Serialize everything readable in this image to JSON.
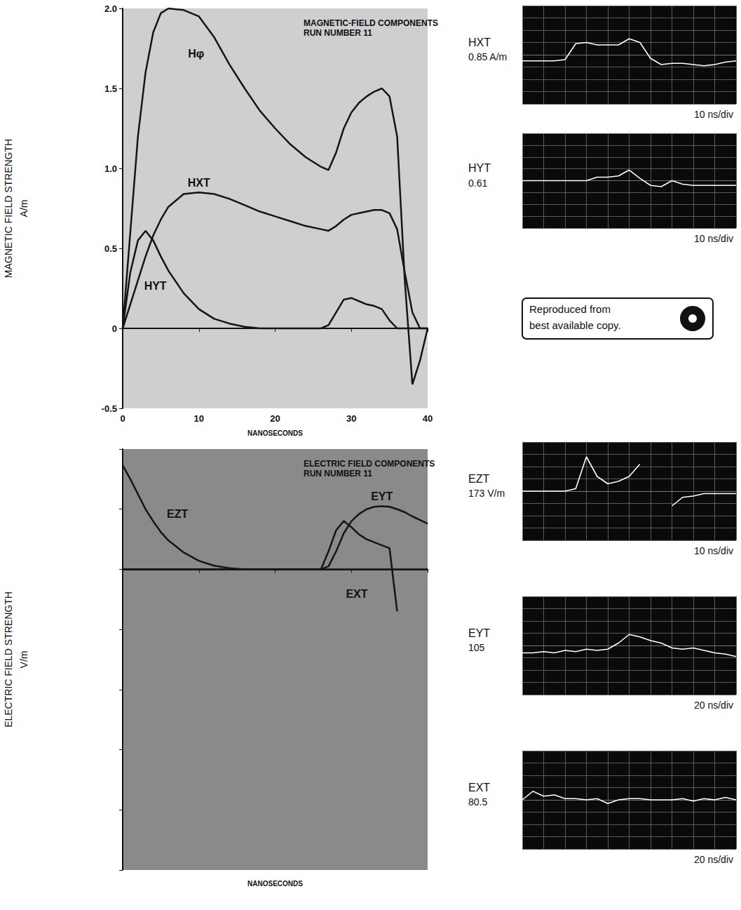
{
  "stamp": "Reproduced from best available copy.",
  "chart_data": [
    {
      "type": "line",
      "title": "MAGNETIC-FIELD COMPONENTS",
      "subtitle": "RUN NUMBER 11",
      "xlabel": "NANOSECONDS",
      "ylabel": "MAGNETIC FIELD STRENGTH\nA/m",
      "x": [
        0,
        1,
        2,
        3,
        4,
        5,
        6,
        8,
        10,
        12,
        14,
        16,
        18,
        20,
        22,
        24,
        26,
        27,
        28,
        29,
        30,
        31,
        32,
        33,
        34,
        35,
        36,
        37,
        38,
        39,
        40
      ],
      "xlim": [
        0,
        40
      ],
      "xticks": [
        0,
        10,
        20,
        30,
        40
      ],
      "ylim": [
        -0.5,
        2.0
      ],
      "yticks": [
        -0.5,
        0,
        0.5,
        {
          "value": 1.0,
          "label": "1.0"
        },
        1.5,
        {
          "value": 2.0,
          "label": "2.0"
        }
      ],
      "grid": false,
      "series": [
        {
          "name": "Hφ",
          "color": "#151515",
          "values": [
            0,
            0.6,
            1.2,
            1.6,
            1.85,
            1.97,
            2.0,
            1.99,
            1.95,
            1.82,
            1.65,
            1.5,
            1.36,
            1.25,
            1.15,
            1.07,
            1.01,
            0.99,
            1.1,
            1.25,
            1.35,
            1.41,
            1.45,
            1.48,
            1.5,
            1.45,
            1.2,
            0.3,
            -0.35,
            -0.2,
            0
          ]
        },
        {
          "name": "HXT",
          "color": "#151515",
          "values": [
            0,
            0.15,
            0.3,
            0.45,
            0.58,
            0.68,
            0.76,
            0.84,
            0.85,
            0.84,
            0.81,
            0.77,
            0.73,
            0.7,
            0.67,
            0.64,
            0.62,
            0.61,
            0.64,
            0.68,
            0.71,
            0.72,
            0.73,
            0.74,
            0.74,
            0.72,
            0.62,
            0.35,
            0.1,
            0,
            0
          ]
        },
        {
          "name": "HYT",
          "color": "#151515",
          "values": [
            0,
            0.35,
            0.55,
            0.61,
            0.55,
            0.45,
            0.36,
            0.22,
            0.12,
            0.06,
            0.03,
            0.01,
            0,
            0,
            0,
            0,
            0,
            0.02,
            0.1,
            0.18,
            0.19,
            0.17,
            0.15,
            0.14,
            0.12,
            0.05,
            0,
            0,
            0,
            0,
            0
          ]
        }
      ]
    },
    {
      "type": "line",
      "title": "ELECTRIC FIELD COMPONENTS",
      "subtitle": "RUN NUMBER 11",
      "xlabel": "NANOSECONDS",
      "ylabel": "ELECTRIC FIELD STRENGTH\nV/m",
      "x": [
        0,
        1,
        2,
        3,
        4,
        5,
        6,
        8,
        10,
        12,
        14,
        16,
        18,
        20,
        22,
        24,
        26,
        27,
        28,
        29,
        30,
        31,
        32,
        33,
        34,
        35,
        36,
        37,
        38,
        39,
        40
      ],
      "xlim": [
        0,
        40
      ],
      "xticks": [
        0,
        10,
        20,
        30,
        40
      ],
      "ylim": [
        -500,
        200
      ],
      "yticks": [
        -500,
        -400,
        -300,
        -200,
        -100,
        0,
        100,
        200
      ],
      "grid": false,
      "tick_labels": false,
      "series": [
        {
          "name": "EZT",
          "color": "#151515",
          "values": [
            173,
            150,
            125,
            100,
            80,
            62,
            48,
            28,
            14,
            6,
            2,
            0,
            0,
            0,
            0,
            0,
            0,
            0,
            0,
            0,
            0,
            0,
            0,
            0,
            0,
            0,
            0,
            0,
            0,
            0,
            0
          ]
        },
        {
          "name": "EYT",
          "color": "#151515",
          "values": [
            0,
            0,
            0,
            0,
            0,
            0,
            0,
            0,
            0,
            0,
            0,
            0,
            0,
            0,
            0,
            0,
            0,
            5,
            30,
            60,
            80,
            92,
            100,
            104,
            105,
            104,
            100,
            95,
            88,
            82,
            76
          ]
        },
        {
          "name": "EXT",
          "color": "#151515",
          "values": [
            0,
            0,
            0,
            0,
            0,
            0,
            0,
            0,
            0,
            0,
            0,
            0,
            0,
            0,
            0,
            0,
            0,
            30,
            65,
            80.5,
            70,
            58,
            50,
            45,
            40,
            35,
            -70,
            null,
            null,
            null,
            null
          ]
        }
      ]
    },
    {
      "type": "line",
      "title": "HXT",
      "subtitle": "0.85 A/m",
      "xlabel": "10 ns/div",
      "x": [
        0,
        0.5,
        1,
        1.5,
        2,
        2.5,
        3,
        3.5,
        4,
        4.5,
        5,
        5.5,
        6,
        6.5,
        7,
        7.5,
        8,
        8.5,
        9,
        9.5,
        10
      ],
      "xlim": [
        0,
        10
      ],
      "xticks": [
        0,
        1,
        2,
        3,
        4,
        5,
        6,
        7,
        8,
        9,
        10
      ],
      "ylim": [
        -4,
        4
      ],
      "yticks": [
        -4,
        -3,
        -2,
        -1,
        0,
        1,
        2,
        3,
        4
      ],
      "grid": true,
      "tick_labels": false,
      "series": [
        {
          "color": "#ffffff",
          "values": [
            -0.5,
            -0.5,
            -0.5,
            -0.5,
            -0.4,
            0.9,
            1.0,
            0.8,
            0.8,
            0.8,
            1.3,
            1.0,
            -0.3,
            -0.8,
            -0.7,
            -0.7,
            -0.8,
            -0.9,
            -0.8,
            -0.6,
            -0.5
          ]
        }
      ]
    },
    {
      "type": "line",
      "title": "HYT",
      "subtitle": "0.61",
      "xlabel": "10 ns/div",
      "x": [
        0,
        0.5,
        1,
        1.5,
        2,
        2.5,
        3,
        3.5,
        4,
        4.5,
        5,
        5.5,
        6,
        6.5,
        7,
        7.5,
        8,
        8.5,
        9,
        9.5,
        10
      ],
      "xlim": [
        0,
        10
      ],
      "xticks": [
        0,
        1,
        2,
        3,
        4,
        5,
        6,
        7,
        8,
        9,
        10
      ],
      "ylim": [
        -4,
        4
      ],
      "yticks": [
        -4,
        -3,
        -2,
        -1,
        0,
        1,
        2,
        3,
        4
      ],
      "grid": true,
      "tick_labels": false,
      "series": [
        {
          "color": "#ffffff",
          "values": [
            0,
            0,
            0,
            0,
            0,
            0,
            0,
            0.3,
            0.3,
            0.4,
            0.9,
            0.2,
            -0.4,
            -0.5,
            0,
            -0.3,
            -0.4,
            -0.4,
            -0.4,
            -0.4,
            -0.4
          ]
        }
      ]
    },
    {
      "type": "line",
      "title": "EZT",
      "subtitle": "173 V/m",
      "xlabel": "10 ns/div",
      "x": [
        0,
        0.5,
        1,
        1.5,
        2,
        2.5,
        3,
        3.5,
        4,
        4.5,
        5,
        5.5,
        6,
        6.5,
        7,
        7.5,
        8,
        8.5,
        9,
        9.5,
        10
      ],
      "xlim": [
        0,
        10
      ],
      "xticks": [
        0,
        1,
        2,
        3,
        4,
        5,
        6,
        7,
        8,
        9,
        10
      ],
      "ylim": [
        -4,
        4
      ],
      "yticks": [
        -4,
        -3,
        -2,
        -1,
        0,
        1,
        2,
        3,
        4
      ],
      "grid": true,
      "tick_labels": false,
      "series": [
        {
          "color": "#ffffff",
          "values": [
            0,
            0,
            0,
            0,
            0,
            0.2,
            2.8,
            1.2,
            0.6,
            0.8,
            1.2,
            2.2,
            null,
            null,
            -1.2,
            -0.5,
            -0.4,
            -0.2,
            -0.2,
            -0.2,
            -0.2
          ]
        }
      ]
    },
    {
      "type": "line",
      "title": "EYT",
      "subtitle": "105",
      "xlabel": "20 ns/div",
      "x": [
        0,
        0.5,
        1,
        1.5,
        2,
        2.5,
        3,
        3.5,
        4,
        4.5,
        5,
        5.5,
        6,
        6.5,
        7,
        7.5,
        8,
        8.5,
        9,
        9.5,
        10
      ],
      "xlim": [
        0,
        10
      ],
      "xticks": [
        0,
        1,
        2,
        3,
        4,
        5,
        6,
        7,
        8,
        9,
        10
      ],
      "ylim": [
        -4,
        4
      ],
      "yticks": [
        -4,
        -3,
        -2,
        -1,
        0,
        1,
        2,
        3,
        4
      ],
      "grid": true,
      "tick_labels": false,
      "series": [
        {
          "color": "#ffffff",
          "values": [
            -0.6,
            -0.6,
            -0.5,
            -0.6,
            -0.4,
            -0.5,
            -0.3,
            -0.4,
            -0.3,
            0.2,
            0.9,
            0.7,
            0.4,
            0.2,
            -0.2,
            -0.3,
            -0.2,
            -0.4,
            -0.6,
            -0.7,
            -0.9
          ]
        }
      ]
    },
    {
      "type": "line",
      "title": "EXT",
      "subtitle": "80.5",
      "xlabel": "20 ns/div",
      "x": [
        0,
        0.5,
        1,
        1.5,
        2,
        2.5,
        3,
        3.5,
        4,
        4.5,
        5,
        5.5,
        6,
        6.5,
        7,
        7.5,
        8,
        8.5,
        9,
        9.5,
        10
      ],
      "xlim": [
        0,
        10
      ],
      "xticks": [
        0,
        1,
        2,
        3,
        4,
        5,
        6,
        7,
        8,
        9,
        10
      ],
      "ylim": [
        -4,
        4
      ],
      "yticks": [
        -4,
        -3,
        -2,
        -1,
        0,
        1,
        2,
        3,
        4
      ],
      "grid": true,
      "tick_labels": false,
      "series": [
        {
          "color": "#ffffff",
          "values": [
            0,
            0.7,
            0.3,
            0.4,
            0.1,
            0.1,
            0,
            0.1,
            -0.3,
            0,
            0.1,
            0.1,
            0,
            0,
            0,
            0.1,
            -0.1,
            0.1,
            0,
            0.2,
            0
          ]
        }
      ]
    }
  ]
}
